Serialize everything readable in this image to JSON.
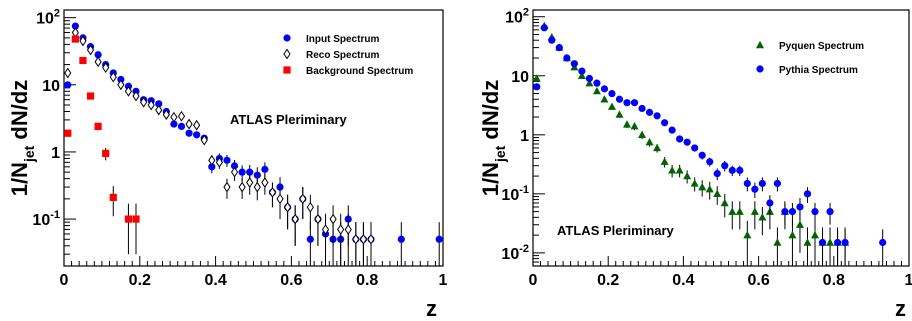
{
  "chart_data": [
    {
      "type": "scatter",
      "xlabel": "z",
      "ylabel": "1/N",
      "ylabel_sub": "jet",
      "ylabel_rest": " dN/dz",
      "xlim": [
        0,
        1
      ],
      "ylim": [
        0.02,
        130
      ],
      "yscale": "log",
      "xticks": [
        "0",
        "0.2",
        "0.4",
        "0.6",
        "0.8",
        "1"
      ],
      "yticks": [
        {
          "b": "10",
          "e": "-1",
          "v": 0.1
        },
        {
          "b": "1",
          "e": "",
          "v": 1
        },
        {
          "b": "10",
          "e": "",
          "v": 10
        },
        {
          "b": "10",
          "e": "2",
          "v": 100
        }
      ],
      "annotation": "ATLAS Pleriminary",
      "legend_position": "top-right",
      "series": [
        {
          "name": "Input Spectrum",
          "marker": "circle",
          "color": "#0000ff",
          "x": [
            0.01,
            0.03,
            0.05,
            0.07,
            0.09,
            0.11,
            0.13,
            0.15,
            0.17,
            0.19,
            0.21,
            0.23,
            0.25,
            0.27,
            0.29,
            0.31,
            0.33,
            0.35,
            0.37,
            0.39,
            0.41,
            0.43,
            0.45,
            0.47,
            0.49,
            0.51,
            0.53,
            0.55,
            0.57,
            0.59,
            0.61,
            0.63,
            0.65,
            0.67,
            0.69,
            0.71,
            0.73,
            0.75,
            0.77,
            0.79,
            0.81,
            0.89,
            0.99
          ],
          "y": [
            10,
            75,
            50,
            37,
            28,
            20,
            15,
            12,
            9.5,
            8,
            6,
            5.8,
            5.2,
            4,
            2.6,
            2.4,
            1.9,
            1.8,
            1.6,
            0.6,
            0.8,
            0.75,
            0.62,
            0.5,
            0.5,
            0.45,
            0.55,
            0.25,
            0.3,
            0.15,
            0.1,
            0.2,
            0.05,
            0.1,
            0.06,
            0.05,
            0.05,
            0.1,
            0.05,
            0.05,
            0.05,
            0.05,
            0.05
          ],
          "yerr": [
            0.3,
            2,
            1.5,
            1,
            0.8,
            0.6,
            0.5,
            0.4,
            0.4,
            0.3,
            0.3,
            0.3,
            0.3,
            0.25,
            0.2,
            0.2,
            0.2,
            0.2,
            0.2,
            0.12,
            0.15,
            0.15,
            0.14,
            0.13,
            0.14,
            0.14,
            0.15,
            0.1,
            0.12,
            0.08,
            0.06,
            0.1,
            0.04,
            0.06,
            0.04,
            0.04,
            0.04,
            0.06,
            0.04,
            0.04,
            0.04,
            0.04,
            0.04
          ]
        },
        {
          "name": "Reco Spectrum",
          "marker": "diamond",
          "color": "#000000",
          "x": [
            0.01,
            0.03,
            0.05,
            0.07,
            0.09,
            0.11,
            0.13,
            0.15,
            0.17,
            0.19,
            0.21,
            0.23,
            0.25,
            0.27,
            0.29,
            0.31,
            0.33,
            0.35,
            0.37,
            0.39,
            0.41,
            0.43,
            0.45,
            0.47,
            0.49,
            0.51,
            0.53,
            0.55,
            0.57,
            0.59,
            0.61,
            0.63,
            0.65,
            0.67,
            0.69,
            0.71,
            0.73,
            0.75,
            0.77,
            0.79,
            0.81
          ],
          "y": [
            15,
            60,
            45,
            33,
            22,
            18,
            13,
            10,
            8,
            6.8,
            5.5,
            5,
            4.2,
            3.6,
            3.3,
            3.4,
            2.6,
            2.5,
            1.5,
            0.75,
            0.7,
            0.3,
            0.5,
            0.3,
            0.35,
            0.3,
            0.35,
            0.25,
            0.2,
            0.15,
            0.1,
            0.2,
            0.15,
            0.1,
            0.07,
            0.1,
            0.07,
            0.07,
            0.05,
            0.05,
            0.05
          ],
          "yerr": [
            0.5,
            2,
            1.5,
            1,
            0.8,
            0.6,
            0.5,
            0.4,
            0.4,
            0.3,
            0.3,
            0.3,
            0.3,
            0.25,
            0.25,
            0.25,
            0.2,
            0.2,
            0.2,
            0.14,
            0.14,
            0.1,
            0.13,
            0.1,
            0.12,
            0.11,
            0.12,
            0.1,
            0.1,
            0.08,
            0.06,
            0.1,
            0.08,
            0.06,
            0.05,
            0.06,
            0.05,
            0.05,
            0.04,
            0.04,
            0.04
          ]
        },
        {
          "name": "Background Spectrum",
          "marker": "square",
          "color": "#ff0000",
          "x": [
            0.01,
            0.03,
            0.05,
            0.07,
            0.09,
            0.11,
            0.13,
            0.17,
            0.19
          ],
          "y": [
            1.9,
            48,
            23,
            6.8,
            2.4,
            0.95,
            0.21,
            0.1,
            0.1
          ],
          "yerr": [
            0.2,
            2,
            1,
            0.5,
            0.3,
            0.2,
            0.1,
            0.07,
            0.07
          ]
        }
      ]
    },
    {
      "type": "scatter",
      "xlabel": "z",
      "ylabel": "1/N",
      "ylabel_sub": "jet",
      "ylabel_rest": " dN/dz",
      "xlim": [
        0,
        1
      ],
      "ylim": [
        0.006,
        130
      ],
      "yscale": "log",
      "xticks": [
        "0",
        "0.2",
        "0.4",
        "0.6",
        "0.8",
        "1"
      ],
      "yticks": [
        {
          "b": "10",
          "e": "-2",
          "v": 0.01
        },
        {
          "b": "10",
          "e": "-1",
          "v": 0.1
        },
        {
          "b": "1",
          "e": "",
          "v": 1
        },
        {
          "b": "10",
          "e": "",
          "v": 10
        },
        {
          "b": "10",
          "e": "2",
          "v": 100
        }
      ],
      "annotation": "ATLAS Pleriminary",
      "legend_position": "top-right",
      "series": [
        {
          "name": "Pyquen Spectrum",
          "marker": "triangle",
          "color": "#006400",
          "x": [
            0.01,
            0.03,
            0.05,
            0.07,
            0.09,
            0.11,
            0.13,
            0.15,
            0.17,
            0.19,
            0.21,
            0.23,
            0.25,
            0.27,
            0.29,
            0.31,
            0.33,
            0.35,
            0.37,
            0.39,
            0.41,
            0.43,
            0.45,
            0.47,
            0.49,
            0.51,
            0.53,
            0.55,
            0.57,
            0.59,
            0.61,
            0.63,
            0.65,
            0.67,
            0.69,
            0.71,
            0.73,
            0.75,
            0.77,
            0.79,
            0.81,
            0.83
          ],
          "y": [
            9,
            70,
            45,
            30,
            20,
            14,
            10,
            7.5,
            5.5,
            4,
            3,
            2.2,
            1.5,
            1.4,
            1,
            0.75,
            0.6,
            0.35,
            0.25,
            0.25,
            0.2,
            0.15,
            0.13,
            0.12,
            0.1,
            0.07,
            0.05,
            0.05,
            0.02,
            0.05,
            0.04,
            0.05,
            0.015,
            0.05,
            0.02,
            0.03,
            0.015,
            0.02,
            0.015,
            0.015,
            0.015,
            0.015
          ],
          "yerr": [
            0.5,
            3,
            2,
            1.5,
            1,
            0.8,
            0.6,
            0.5,
            0.4,
            0.3,
            0.3,
            0.25,
            0.2,
            0.2,
            0.15,
            0.12,
            0.1,
            0.07,
            0.06,
            0.06,
            0.05,
            0.04,
            0.04,
            0.04,
            0.035,
            0.03,
            0.025,
            0.025,
            0.015,
            0.025,
            0.02,
            0.025,
            0.012,
            0.025,
            0.015,
            0.02,
            0.012,
            0.015,
            0.012,
            0.012,
            0.012,
            0.012
          ]
        },
        {
          "name": "Pythia Spectrum",
          "marker": "circle",
          "color": "#0000ff",
          "x": [
            0.01,
            0.03,
            0.05,
            0.07,
            0.09,
            0.11,
            0.13,
            0.15,
            0.17,
            0.19,
            0.21,
            0.23,
            0.25,
            0.27,
            0.29,
            0.31,
            0.33,
            0.35,
            0.37,
            0.39,
            0.41,
            0.43,
            0.45,
            0.47,
            0.49,
            0.51,
            0.53,
            0.55,
            0.57,
            0.59,
            0.61,
            0.63,
            0.65,
            0.67,
            0.69,
            0.71,
            0.73,
            0.75,
            0.77,
            0.79,
            0.81,
            0.83,
            0.93
          ],
          "y": [
            6.5,
            65,
            40,
            30,
            20,
            16,
            12,
            9,
            7.5,
            6,
            5,
            4,
            3.5,
            3.5,
            2.8,
            2.4,
            2.1,
            1.6,
            1.2,
            0.85,
            0.75,
            0.6,
            0.45,
            0.35,
            0.22,
            0.3,
            0.25,
            0.25,
            0.15,
            0.12,
            0.15,
            0.07,
            0.15,
            0.05,
            0.05,
            0.06,
            0.1,
            0.05,
            0.015,
            0.05,
            0.015,
            0.015,
            0.015
          ],
          "yerr": [
            0.4,
            3,
            2,
            1.5,
            1,
            0.8,
            0.6,
            0.5,
            0.4,
            0.35,
            0.3,
            0.25,
            0.22,
            0.22,
            0.2,
            0.18,
            0.16,
            0.14,
            0.12,
            0.1,
            0.09,
            0.08,
            0.07,
            0.06,
            0.05,
            0.06,
            0.05,
            0.05,
            0.04,
            0.035,
            0.04,
            0.025,
            0.04,
            0.02,
            0.02,
            0.025,
            0.03,
            0.02,
            0.01,
            0.02,
            0.01,
            0.01,
            0.01
          ]
        }
      ]
    }
  ]
}
